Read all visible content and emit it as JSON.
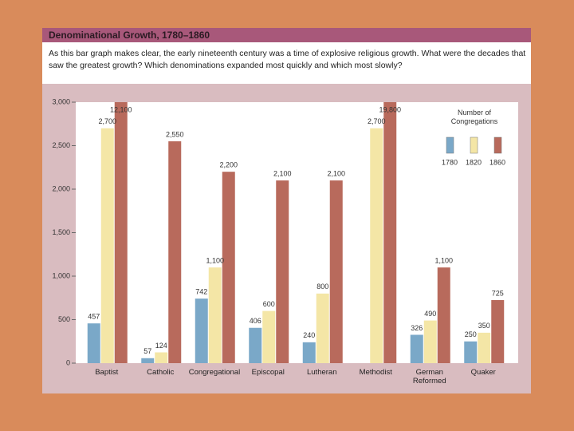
{
  "header": {
    "title": "Denominational Growth, 1780–1860",
    "subtitle": "As this bar graph makes clear, the early nineteenth century was a time of explosive religious growth. What were the decades that saw the greatest growth? Which denominations expanded most quickly and which most slowly?"
  },
  "chart_data": {
    "type": "bar",
    "legend_title": "Number of Congregations",
    "legend_position": "upper right",
    "categories": [
      "Baptist",
      "Catholic",
      "Congregational",
      "Episcopal",
      "Lutheran",
      "Methodist",
      "German Reformed",
      "Quaker"
    ],
    "series": [
      {
        "name": "1780",
        "color": "#7aa8c8",
        "values": [
          457,
          57,
          742,
          406,
          240,
          null,
          326,
          250
        ],
        "value_labels": [
          "457",
          "57",
          "742",
          "406",
          "240",
          null,
          "326",
          "250"
        ]
      },
      {
        "name": "1820",
        "color": "#f4e6a6",
        "values": [
          2700,
          124,
          1100,
          600,
          800,
          2700,
          490,
          350
        ],
        "value_labels": [
          "2,700",
          "124",
          "1,100",
          "600",
          "800",
          "2,700",
          "490",
          "350"
        ]
      },
      {
        "name": "1860",
        "color": "#b86a5c",
        "values": [
          12100,
          2550,
          2200,
          2100,
          2100,
          19800,
          1100,
          725
        ],
        "value_labels": [
          "12,100",
          "2,550",
          "2,200",
          "2,100",
          "2,100",
          "19,800",
          "1,100",
          "725"
        ]
      }
    ],
    "ylim": [
      0,
      3000
    ],
    "yticks": [
      0,
      500,
      {
        "value": 1000,
        "label": "1,000"
      },
      {
        "value": 1500,
        "label": "1,500"
      },
      {
        "value": 2000,
        "label": "2,000"
      },
      {
        "value": 2500,
        "label": "2,500"
      },
      {
        "value": 3000,
        "label": "3,000"
      }
    ],
    "grid": false
  }
}
